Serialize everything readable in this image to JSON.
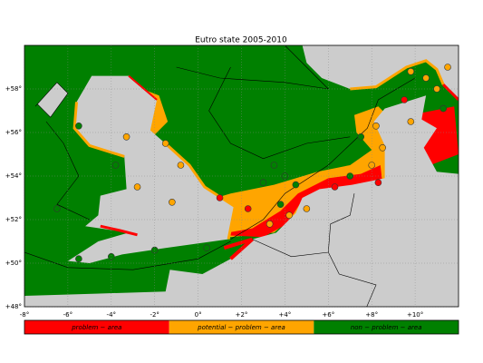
{
  "map": {
    "title": "Eutro state 2005-2010",
    "lon_range": [
      -8,
      12
    ],
    "lat_range": [
      48,
      60
    ],
    "lon_ticks": [
      {
        "value": -8,
        "label": "-8°"
      },
      {
        "value": -6,
        "label": "-6°"
      },
      {
        "value": -4,
        "label": "-4°"
      },
      {
        "value": -2,
        "label": "-2°"
      },
      {
        "value": 0,
        "label": "0°"
      },
      {
        "value": 2,
        "label": "+2°"
      },
      {
        "value": 4,
        "label": "+4°"
      },
      {
        "value": 6,
        "label": "+6°"
      },
      {
        "value": 8,
        "label": "+8°"
      },
      {
        "value": 10,
        "label": "+10°"
      }
    ],
    "lat_ticks": [
      {
        "value": 48,
        "label": "+48°"
      },
      {
        "value": 50,
        "label": "+50°"
      },
      {
        "value": 52,
        "label": "+52°"
      },
      {
        "value": 54,
        "label": "+54°"
      },
      {
        "value": 56,
        "label": "+56°"
      },
      {
        "value": 58,
        "label": "+58°"
      }
    ],
    "legend": [
      {
        "label": "problem − area",
        "color": "#ff0000"
      },
      {
        "label": "potential − problem − area",
        "color": "#ffa500"
      },
      {
        "label": "non − problem − area",
        "color": "#008000"
      }
    ]
  }
}
